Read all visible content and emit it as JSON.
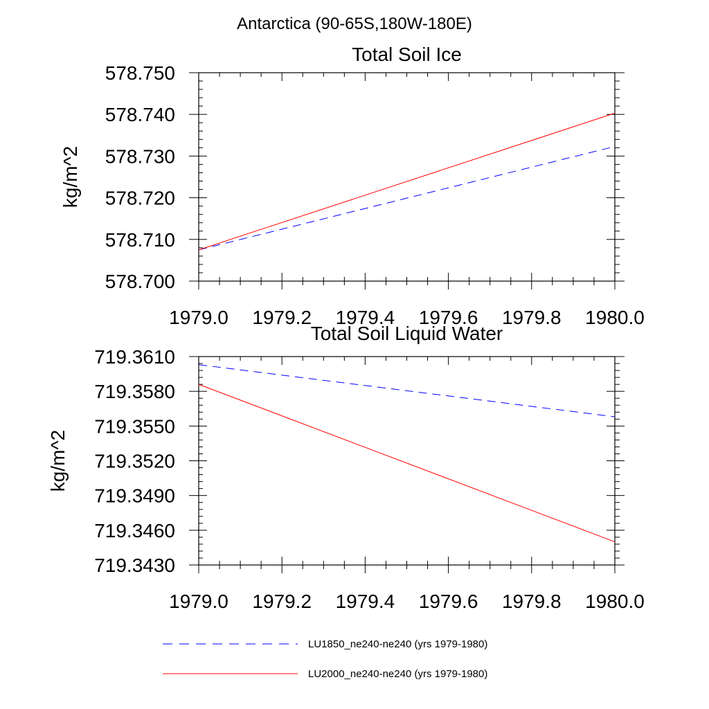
{
  "figure": {
    "title": "Antarctica (90-65S,180W-180E)"
  },
  "chart_data": [
    {
      "type": "line",
      "title": "Total Soil Ice",
      "xlabel": "",
      "ylabel": "kg/m^2",
      "xlim": [
        1979.0,
        1980.0
      ],
      "ylim": [
        578.7,
        578.75
      ],
      "x_ticks": [
        "1979.0",
        "1979.2",
        "1979.4",
        "1979.6",
        "1979.8",
        "1980.0"
      ],
      "y_ticks": [
        "578.700",
        "578.710",
        "578.720",
        "578.730",
        "578.740",
        "578.750"
      ],
      "grid": false,
      "x": [
        1979.0,
        1980.0
      ],
      "series": [
        {
          "name": "LU1850_ne240-ne240 (yrs 1979-1980)",
          "values": [
            578.7075,
            578.7323
          ],
          "color": "#0000ff",
          "dash": "dashed"
        },
        {
          "name": "LU2000_ne240-ne240 (yrs 1979-1980)",
          "values": [
            578.7075,
            578.7403
          ],
          "color": "#ff0000",
          "dash": "solid"
        }
      ]
    },
    {
      "type": "line",
      "title": "Total Soil Liquid Water",
      "xlabel": "",
      "ylabel": "kg/m^2",
      "xlim": [
        1979.0,
        1980.0
      ],
      "ylim": [
        719.343,
        719.361
      ],
      "x_ticks": [
        "1979.0",
        "1979.2",
        "1979.4",
        "1979.6",
        "1979.8",
        "1980.0"
      ],
      "y_ticks": [
        "719.3430",
        "719.3460",
        "719.3490",
        "719.3520",
        "719.3550",
        "719.3580",
        "719.3610"
      ],
      "grid": false,
      "x": [
        1979.0,
        1980.0
      ],
      "series": [
        {
          "name": "LU1850_ne240-ne240 (yrs 1979-1980)",
          "values": [
            719.3603,
            719.3558
          ],
          "color": "#0000ff",
          "dash": "dashed"
        },
        {
          "name": "LU2000_ne240-ne240 (yrs 1979-1980)",
          "values": [
            719.3586,
            719.345
          ],
          "color": "#ff0000",
          "dash": "solid"
        }
      ]
    }
  ],
  "legend": {
    "placement": "bottom",
    "items": [
      {
        "label": "LU1850_ne240-ne240 (yrs 1979-1980)",
        "color": "#0000ff",
        "dash": "dashed"
      },
      {
        "label": "LU2000_ne240-ne240 (yrs 1979-1980)",
        "color": "#ff0000",
        "dash": "solid"
      }
    ]
  }
}
